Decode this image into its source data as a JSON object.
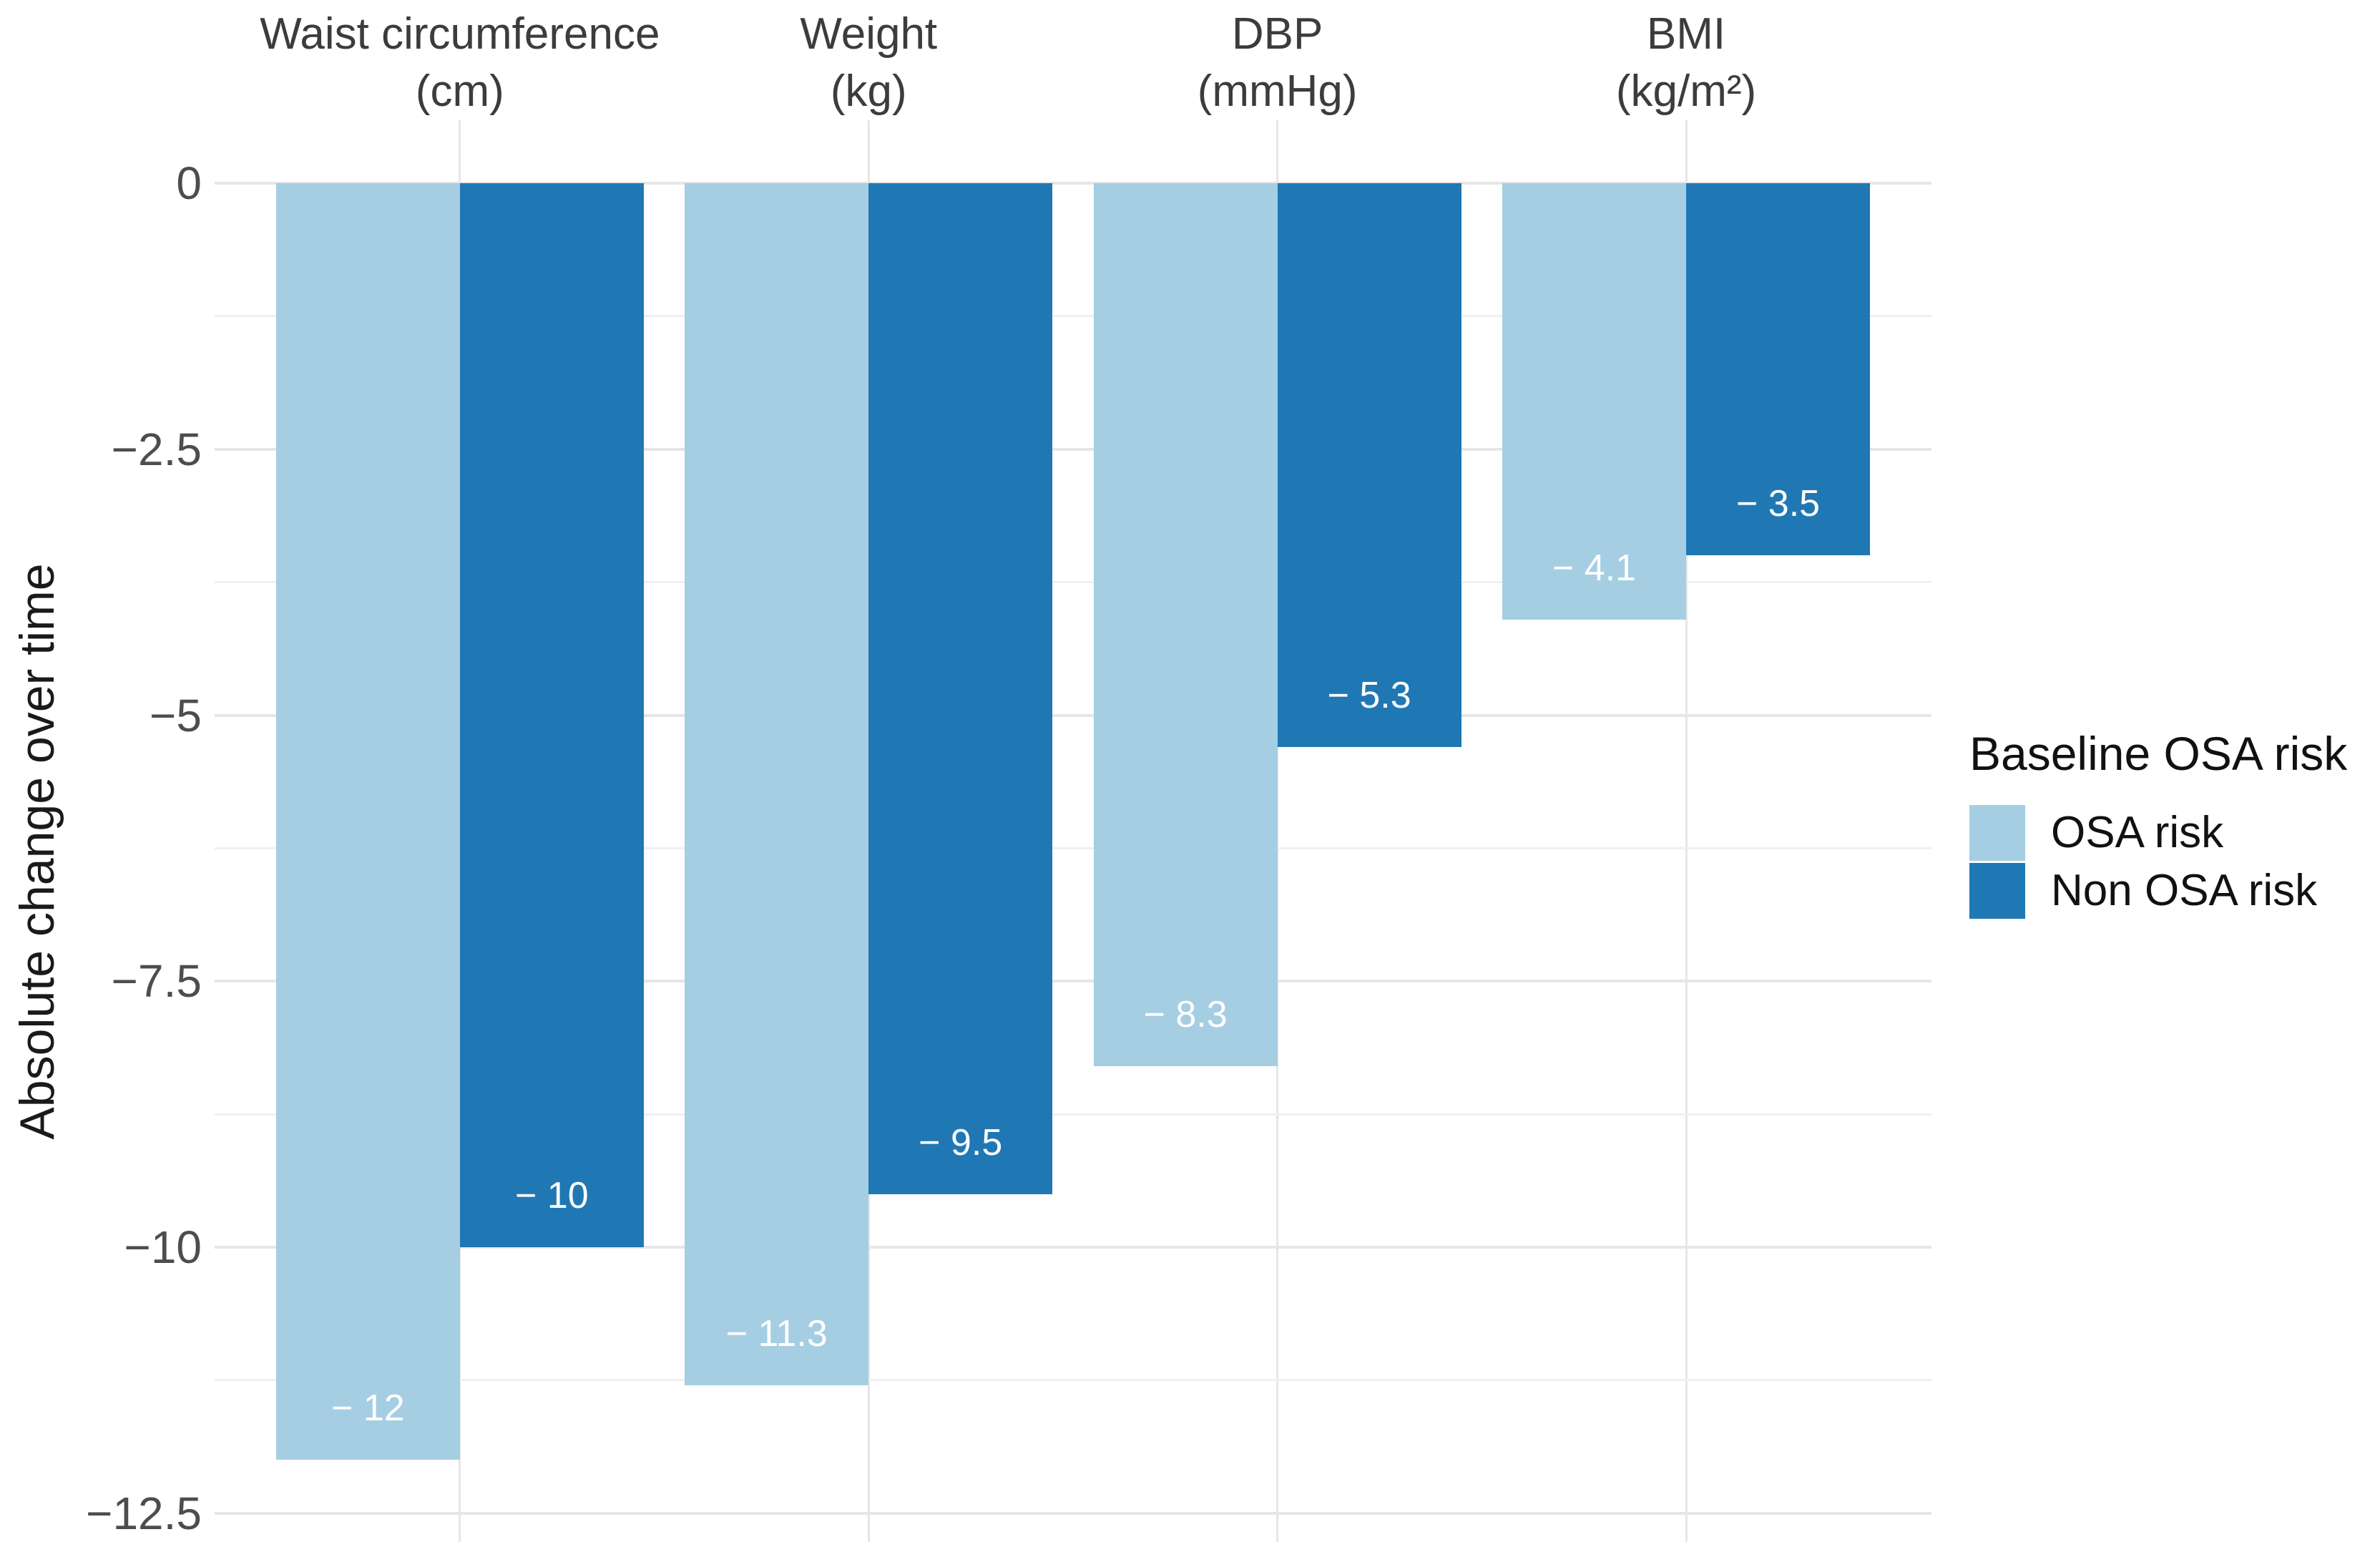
{
  "chart_data": {
    "type": "bar",
    "orientation": "vertical-negative",
    "title": "",
    "ylabel": "Absolute change over time",
    "categories": [
      {
        "name": "Waist circumference",
        "unit": "(cm)"
      },
      {
        "name": "Weight",
        "unit": "(kg)"
      },
      {
        "name": "DBP",
        "unit": "(mmHg)"
      },
      {
        "name": "BMI",
        "unit": "(kg/m²)"
      }
    ],
    "series": [
      {
        "name": "OSA risk",
        "color": "#A6CEE3",
        "values": [
          -12,
          -11.3,
          -8.3,
          -4.1
        ],
        "bar_labels": [
          "− 12",
          "− 11.3",
          "− 8.3",
          "− 4.1"
        ]
      },
      {
        "name": "Non OSA risk",
        "color": "#1F78B4",
        "values": [
          -10,
          -9.5,
          -5.3,
          -3.5
        ],
        "bar_labels": [
          "− 10",
          "− 9.5",
          "− 5.3",
          "− 3.5"
        ]
      }
    ],
    "y_axis": {
      "ticks": [
        0,
        -2.5,
        -5,
        -7.5,
        -10,
        -12.5
      ],
      "tick_labels": [
        "0",
        "−2.5",
        "−5",
        "−7.5",
        "−10",
        "−12.5"
      ],
      "ylim": [
        -12.5,
        0
      ],
      "minor_grid": true
    },
    "legend": {
      "title": "Baseline OSA risk",
      "position": "right",
      "entries": [
        {
          "label": "OSA risk",
          "color": "#A6CEE3"
        },
        {
          "label": "Non OSA risk",
          "color": "#1F78B4"
        }
      ]
    },
    "colors": {
      "background": "#FFFFFF",
      "grid_major": "#E6E6E6",
      "grid_minor": "#F0F0F0",
      "grid_vertical": "#E6E6E6",
      "bar_value_label": "#FFFFFF",
      "axis_tick_text": "#4D4D4D",
      "category_text": "#3C3C3C",
      "axis_title_text": "#1A1A1A",
      "legend_text": "#111111"
    },
    "grid": true
  }
}
